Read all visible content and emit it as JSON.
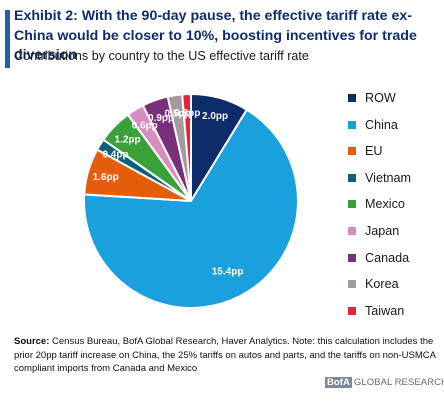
{
  "header": {
    "title": "Exhibit 2: With the 90-day pause, the effective tariff rate ex-China would be closer to 10%, boosting incentives for trade diversion",
    "subtitle": "Contributions by country to the US effective tariff rate"
  },
  "chart_data": {
    "type": "pie",
    "title": "",
    "unit": "pp",
    "legend_position": "right",
    "slices": [
      {
        "name": "ROW",
        "value": 2.0,
        "label": "2.0pp",
        "color": "#0f2c6a"
      },
      {
        "name": "China",
        "value": 15.4,
        "label": "15.4pp",
        "color": "#1aa0dc"
      },
      {
        "name": "EU",
        "value": 1.6,
        "label": "1.6pp",
        "color": "#e35d0b"
      },
      {
        "name": "Vietnam",
        "value": 0.4,
        "label": "0.4pp",
        "color": "#0e6178"
      },
      {
        "name": "Mexico",
        "value": 1.2,
        "label": "1.2pp",
        "color": "#3aa13a"
      },
      {
        "name": "Japan",
        "value": 0.6,
        "label": "0.6pp",
        "color": "#d98cc0"
      },
      {
        "name": "Canada",
        "value": 0.9,
        "label": "0.9pp",
        "color": "#7a2f7a"
      },
      {
        "name": "Korea",
        "value": 0.5,
        "label": "0.5pp",
        "color": "#a39a9e"
      },
      {
        "name": "Taiwan",
        "value": 0.3,
        "label": "0.3pp",
        "color": "#e4233b"
      }
    ]
  },
  "footer": {
    "source_label": "Source:",
    "source_text": "Census Bureau, BofA Global Research, Haver Analytics. Note: this calculation includes the prior 20pp tariff increase on China, the 25% tariffs on autos and parts, and the tariffs on non-USMCA compliant imports from Canada and Mexico",
    "logo_box": "BofA",
    "logo_text": "GLOBAL RESEARCH"
  }
}
